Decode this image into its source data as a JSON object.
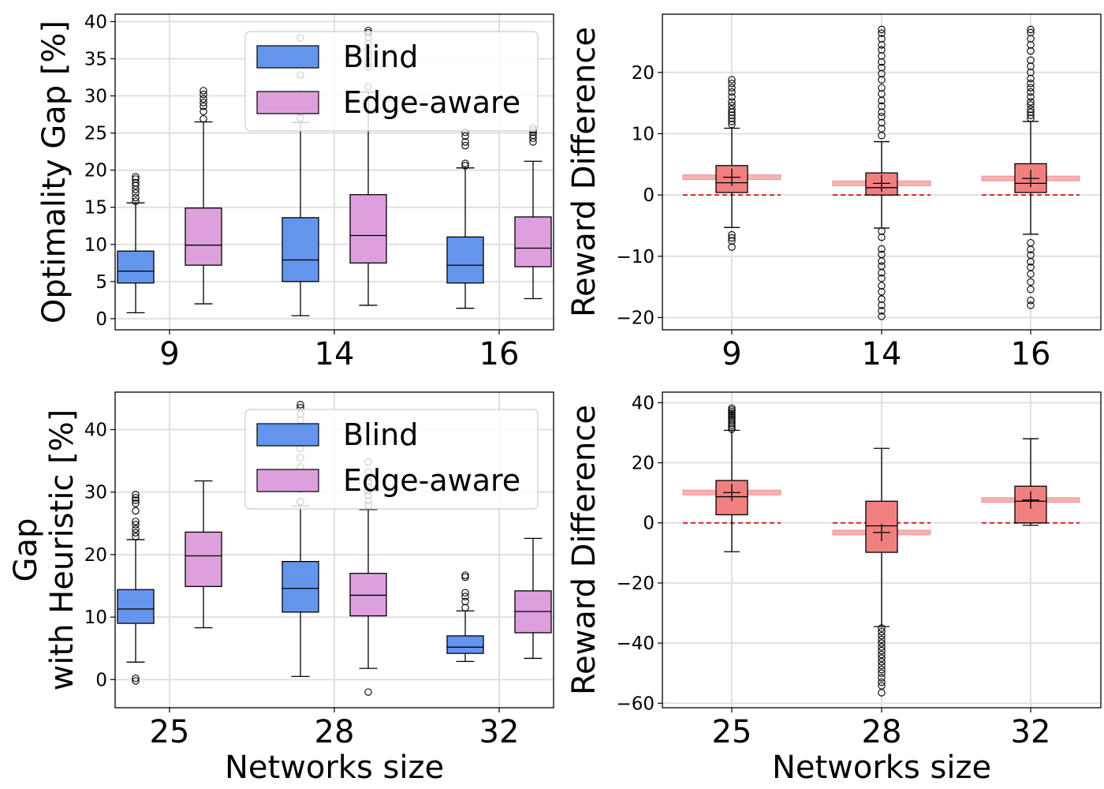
{
  "chart_data": [
    {
      "id": "top-left",
      "type": "box",
      "categories": [
        "9",
        "14",
        "16"
      ],
      "ylabel": "Optimality Gap [%]",
      "xlabel": "",
      "ylim": [
        -1.5,
        41
      ],
      "yticks": [
        0,
        5,
        10,
        15,
        20,
        25,
        30,
        35,
        40
      ],
      "legend": {
        "placement": "top-center",
        "entries": [
          "Blind",
          "Edge-aware"
        ]
      },
      "series": [
        {
          "name": "Blind",
          "color": "#6495ED",
          "boxes": [
            {
              "min": 0.8,
              "q1": 4.8,
              "median": 6.4,
              "q3": 9.1,
              "max": 15.6,
              "outliers": [
                15.8,
                16.3,
                16.9,
                17.4,
                17.9,
                18.3,
                18.8,
                19.1
              ]
            },
            {
              "min": 0.4,
              "q1": 5.0,
              "median": 7.9,
              "q3": 13.6,
              "max": 26.4,
              "outliers": [
                27.0,
                27.8,
                28.8,
                30.2,
                32.8,
                36.0,
                37.8
              ]
            },
            {
              "min": 1.4,
              "q1": 4.8,
              "median": 7.2,
              "q3": 11.0,
              "max": 20.3,
              "outliers": [
                20.6,
                20.9,
                23.3,
                23.8,
                24.6,
                25.1
              ]
            }
          ]
        },
        {
          "name": "Edge-aware",
          "color": "#DDA0DD",
          "boxes": [
            {
              "min": 2.0,
              "q1": 7.2,
              "median": 9.9,
              "q3": 14.9,
              "max": 26.5,
              "outliers": [
                26.9,
                27.9,
                28.6,
                29.1,
                29.6,
                30.2,
                30.7
              ]
            },
            {
              "min": 1.8,
              "q1": 7.5,
              "median": 11.2,
              "q3": 16.7,
              "max": 30.5,
              "outliers": [
                31.2,
                33.9,
                34.5,
                35.4,
                36.2,
                37.0,
                37.9,
                38.5,
                38.8
              ]
            },
            {
              "min": 2.7,
              "q1": 7.0,
              "median": 9.5,
              "q3": 13.7,
              "max": 21.2,
              "outliers": [
                23.8,
                24.3,
                24.7,
                25.1,
                25.4,
                25.7
              ]
            }
          ]
        }
      ]
    },
    {
      "id": "top-right",
      "type": "box",
      "categories": [
        "9",
        "14",
        "16"
      ],
      "ylabel": "Reward Difference",
      "xlabel": "",
      "ylim": [
        -22,
        29.5
      ],
      "yticks": [
        -20,
        -10,
        0,
        10,
        20
      ],
      "color": "#F08080",
      "boxes": [
        {
          "min": -5.3,
          "q1": 0.4,
          "median": 2.0,
          "q3": 4.8,
          "max": 10.9,
          "mean": 2.9,
          "outliers": [
            -8.5,
            -7.5,
            -7.0,
            -6.5,
            11.5,
            12.0,
            12.5,
            13.0,
            13.5,
            14.0,
            14.6,
            15.2,
            16.0,
            16.8,
            17.5,
            18.2,
            18.8
          ]
        },
        {
          "min": -5.4,
          "q1": 0.0,
          "median": 1.2,
          "q3": 3.6,
          "max": 8.7,
          "mean": 1.9,
          "outliers": [
            -19.8,
            -18.9,
            -18.0,
            -17.0,
            -15.8,
            -14.8,
            -13.6,
            -12.7,
            -11.6,
            -10.8,
            -9.7,
            -8.8,
            -6.9,
            -5.9,
            9.7,
            10.8,
            11.8,
            12.8,
            13.5,
            14.5,
            15.4,
            16.5,
            17.5,
            18.8,
            19.8,
            20.8,
            21.7,
            22.7,
            23.7,
            24.5,
            25.5,
            26.4,
            27.0
          ]
        },
        {
          "min": -6.4,
          "q1": 0.4,
          "median": 1.9,
          "q3": 5.1,
          "max": 12.0,
          "mean": 2.7,
          "outliers": [
            -18.0,
            -17.2,
            -15.4,
            -14.2,
            -12.9,
            -11.8,
            -10.9,
            -9.8,
            -8.9,
            -7.8,
            12.5,
            13.0,
            13.5,
            14.0,
            14.7,
            15.2,
            16.0,
            16.8,
            17.5,
            18.2,
            19.0,
            20.0,
            21.0,
            22.0,
            23.5,
            24.5,
            25.5,
            26.5,
            27.0
          ]
        }
      ]
    },
    {
      "id": "bottom-left",
      "type": "box",
      "categories": [
        "25",
        "28",
        "32"
      ],
      "ylabel": "Gap with Heuristic [%]",
      "ylabel_lines": [
        "Gap",
        "with Heuristic [%]"
      ],
      "xlabel": "Networks size",
      "ylim": [
        -4.5,
        46
      ],
      "yticks": [
        0,
        10,
        20,
        30,
        40
      ],
      "legend": {
        "placement": "top-center",
        "entries": [
          "Blind",
          "Edge-aware"
        ]
      },
      "series": [
        {
          "name": "Blind",
          "color": "#6495ED",
          "boxes": [
            {
              "min": 2.8,
              "q1": 9.0,
              "median": 11.3,
              "q3": 14.4,
              "max": 22.4,
              "outliers": [
                -0.2,
                0.2,
                22.9,
                23.5,
                24.1,
                24.8,
                25.3,
                27.0,
                28.2,
                28.7,
                29.1,
                29.6
              ]
            },
            {
              "min": 0.5,
              "q1": 10.8,
              "median": 14.6,
              "q3": 18.9,
              "max": 27.8,
              "outliers": [
                28.5,
                30.5,
                32.0,
                34.0,
                35.5,
                37.0,
                38.5,
                40.0,
                41.5,
                42.5,
                43.5,
                44.0
              ]
            },
            {
              "min": 2.9,
              "q1": 4.2,
              "median": 5.2,
              "q3": 7.0,
              "max": 11.0,
              "outliers": [
                11.5,
                12.5,
                13.3,
                13.9,
                16.4,
                16.7
              ]
            }
          ]
        },
        {
          "name": "Edge-aware",
          "color": "#DDA0DD",
          "boxes": [
            {
              "min": 8.3,
              "q1": 14.9,
              "median": 19.8,
              "q3": 23.6,
              "max": 31.8,
              "outliers": []
            },
            {
              "min": 1.8,
              "q1": 10.2,
              "median": 13.5,
              "q3": 17.0,
              "max": 27.2,
              "outliers": [
                -2.0,
                27.9,
                28.6,
                29.5,
                30.2,
                30.9,
                31.6,
                32.4,
                33.2,
                34.8
              ]
            },
            {
              "min": 3.4,
              "q1": 7.5,
              "median": 10.9,
              "q3": 14.2,
              "max": 22.6,
              "outliers": []
            }
          ]
        }
      ]
    },
    {
      "id": "bottom-right",
      "type": "box",
      "categories": [
        "25",
        "28",
        "32"
      ],
      "ylabel": "Reward Difference",
      "xlabel": "Networks size",
      "ylim": [
        -61.5,
        43.5
      ],
      "yticks": [
        -60,
        -40,
        -20,
        0,
        20,
        40
      ],
      "color": "#F08080",
      "boxes": [
        {
          "min": -9.6,
          "q1": 2.7,
          "median": 8.7,
          "q3": 14.1,
          "max": 30.8,
          "mean": 10.1,
          "outliers": [
            31.2,
            31.8,
            32.5,
            33.2,
            34.0,
            34.6,
            35.2,
            35.8,
            36.4,
            37.0,
            37.6,
            38.2
          ]
        },
        {
          "min": -34.5,
          "q1": -9.8,
          "median": -1.0,
          "q3": 7.2,
          "max": 24.8,
          "mean": -3.2,
          "outliers": [
            -56.5,
            -54.2,
            -53.0,
            -51.5,
            -50.0,
            -48.8,
            -47.5,
            -46.2,
            -45.0,
            -43.8,
            -42.5,
            -41.3,
            -40.0,
            -38.8,
            -37.5,
            -36.2,
            -35.0
          ]
        },
        {
          "min": -0.8,
          "q1": 0.0,
          "median": 7.2,
          "q3": 12.2,
          "max": 28.0,
          "mean": 7.6,
          "outliers": []
        }
      ]
    }
  ]
}
